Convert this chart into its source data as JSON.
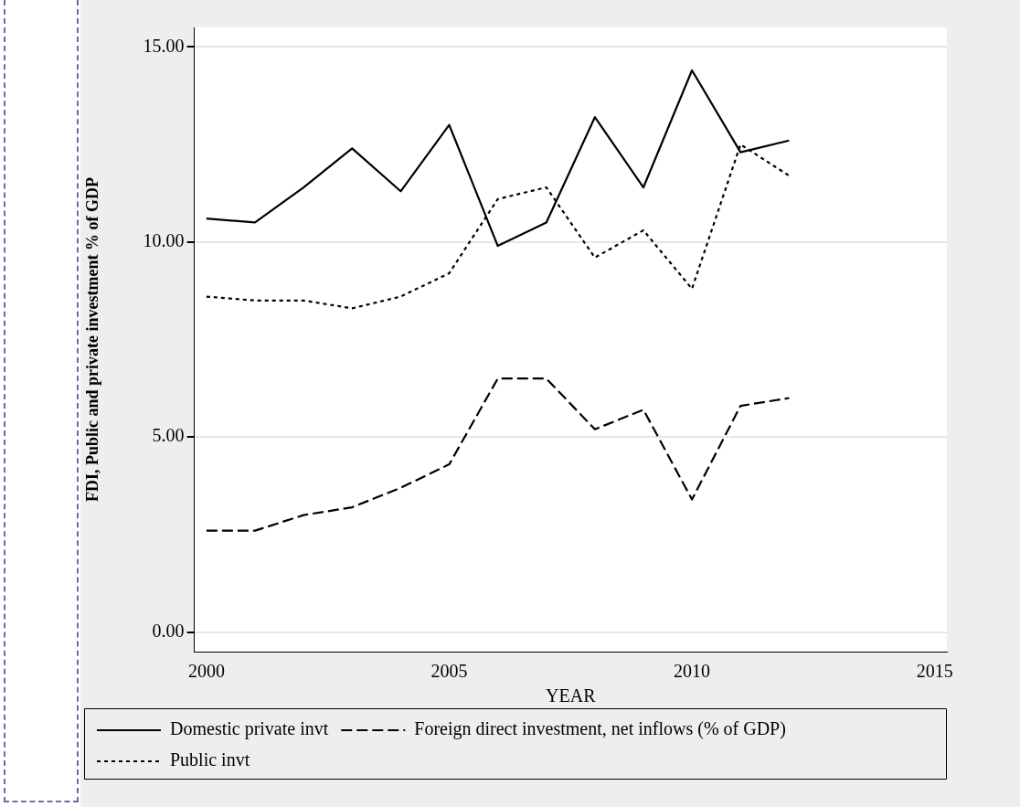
{
  "chart_data": {
    "type": "line",
    "xlabel": "YEAR",
    "ylabel": "FDI, Public and private investment % of GDP",
    "x": [
      2000,
      2001,
      2002,
      2003,
      2004,
      2005,
      2006,
      2007,
      2008,
      2009,
      2010,
      2011,
      2012
    ],
    "series": [
      {
        "name": "Domestic private invt",
        "color": "#000000",
        "line_style": "solid",
        "values": [
          10.6,
          10.5,
          11.4,
          12.4,
          11.3,
          13.0,
          9.9,
          10.5,
          13.2,
          11.4,
          14.4,
          12.3,
          12.6
        ]
      },
      {
        "name": "Foreign direct investment, net inflows (% of GDP)",
        "color": "#000000",
        "line_style": "dashed",
        "values": [
          2.6,
          2.6,
          3.0,
          3.2,
          3.7,
          4.3,
          6.5,
          6.5,
          5.2,
          5.7,
          3.4,
          5.8,
          6.0
        ]
      },
      {
        "name": "Public invt",
        "color": "#000000",
        "line_style": "dotted",
        "values": [
          8.6,
          8.5,
          8.5,
          8.3,
          8.6,
          9.2,
          11.1,
          11.4,
          9.6,
          10.3,
          8.8,
          12.5,
          11.7
        ]
      }
    ],
    "xlim": [
      1999.75,
      2015.25
    ],
    "xticks": [
      2000,
      2005,
      2010,
      2015
    ],
    "ylim": [
      -0.5,
      15.5
    ],
    "yticks": [
      {
        "value": 0,
        "label": "0.00"
      },
      {
        "value": 5,
        "label": "5.00"
      },
      {
        "value": 10,
        "label": "10.00"
      },
      {
        "value": 15,
        "label": "15.00"
      }
    ],
    "grid": "y",
    "legend": "bottom",
    "marker": "none"
  }
}
